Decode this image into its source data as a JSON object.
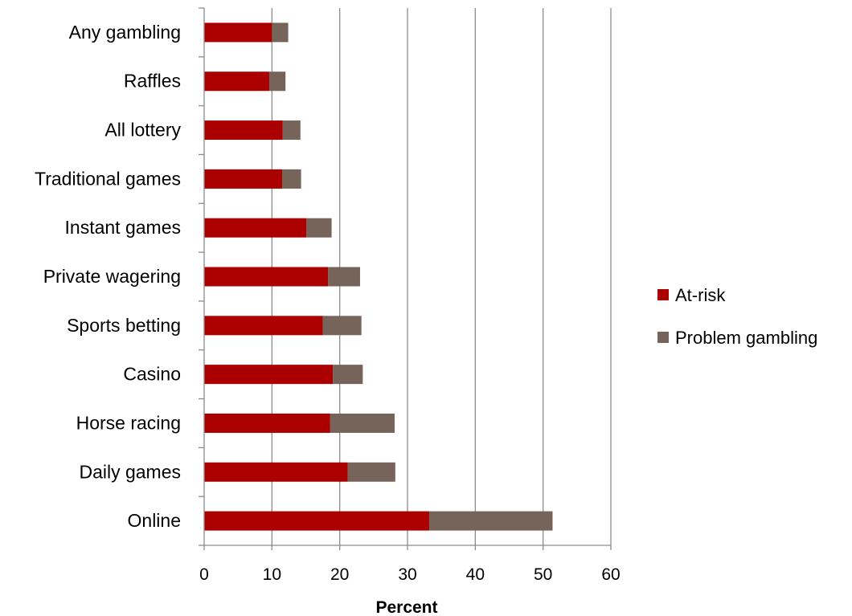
{
  "chart_data": {
    "type": "bar",
    "orientation": "horizontal",
    "stacked": true,
    "categories": [
      "Online",
      "Daily games",
      "Horse racing",
      "Casino",
      "Sports betting",
      "Private wagering",
      "Instant games",
      "Traditional games",
      "All lottery",
      "Raffles",
      "Any gambling"
    ],
    "series": [
      {
        "name": "At-risk",
        "color": "#aa0000",
        "values": [
          33.2,
          21.2,
          18.6,
          19.0,
          17.5,
          18.3,
          15.1,
          11.5,
          11.6,
          9.6,
          10.0
        ]
      },
      {
        "name": "Problem gambling",
        "color": "#76645a",
        "values": [
          18.2,
          7.0,
          9.5,
          4.4,
          5.7,
          4.7,
          3.7,
          2.8,
          2.6,
          2.4,
          2.4
        ]
      }
    ],
    "xlabel": "Percent",
    "ylabel": "",
    "xlim": [
      0,
      60
    ],
    "xticks": [
      "0",
      "10",
      "20",
      "30",
      "40",
      "50",
      "60"
    ],
    "grid": "vertical",
    "legend": "right"
  }
}
